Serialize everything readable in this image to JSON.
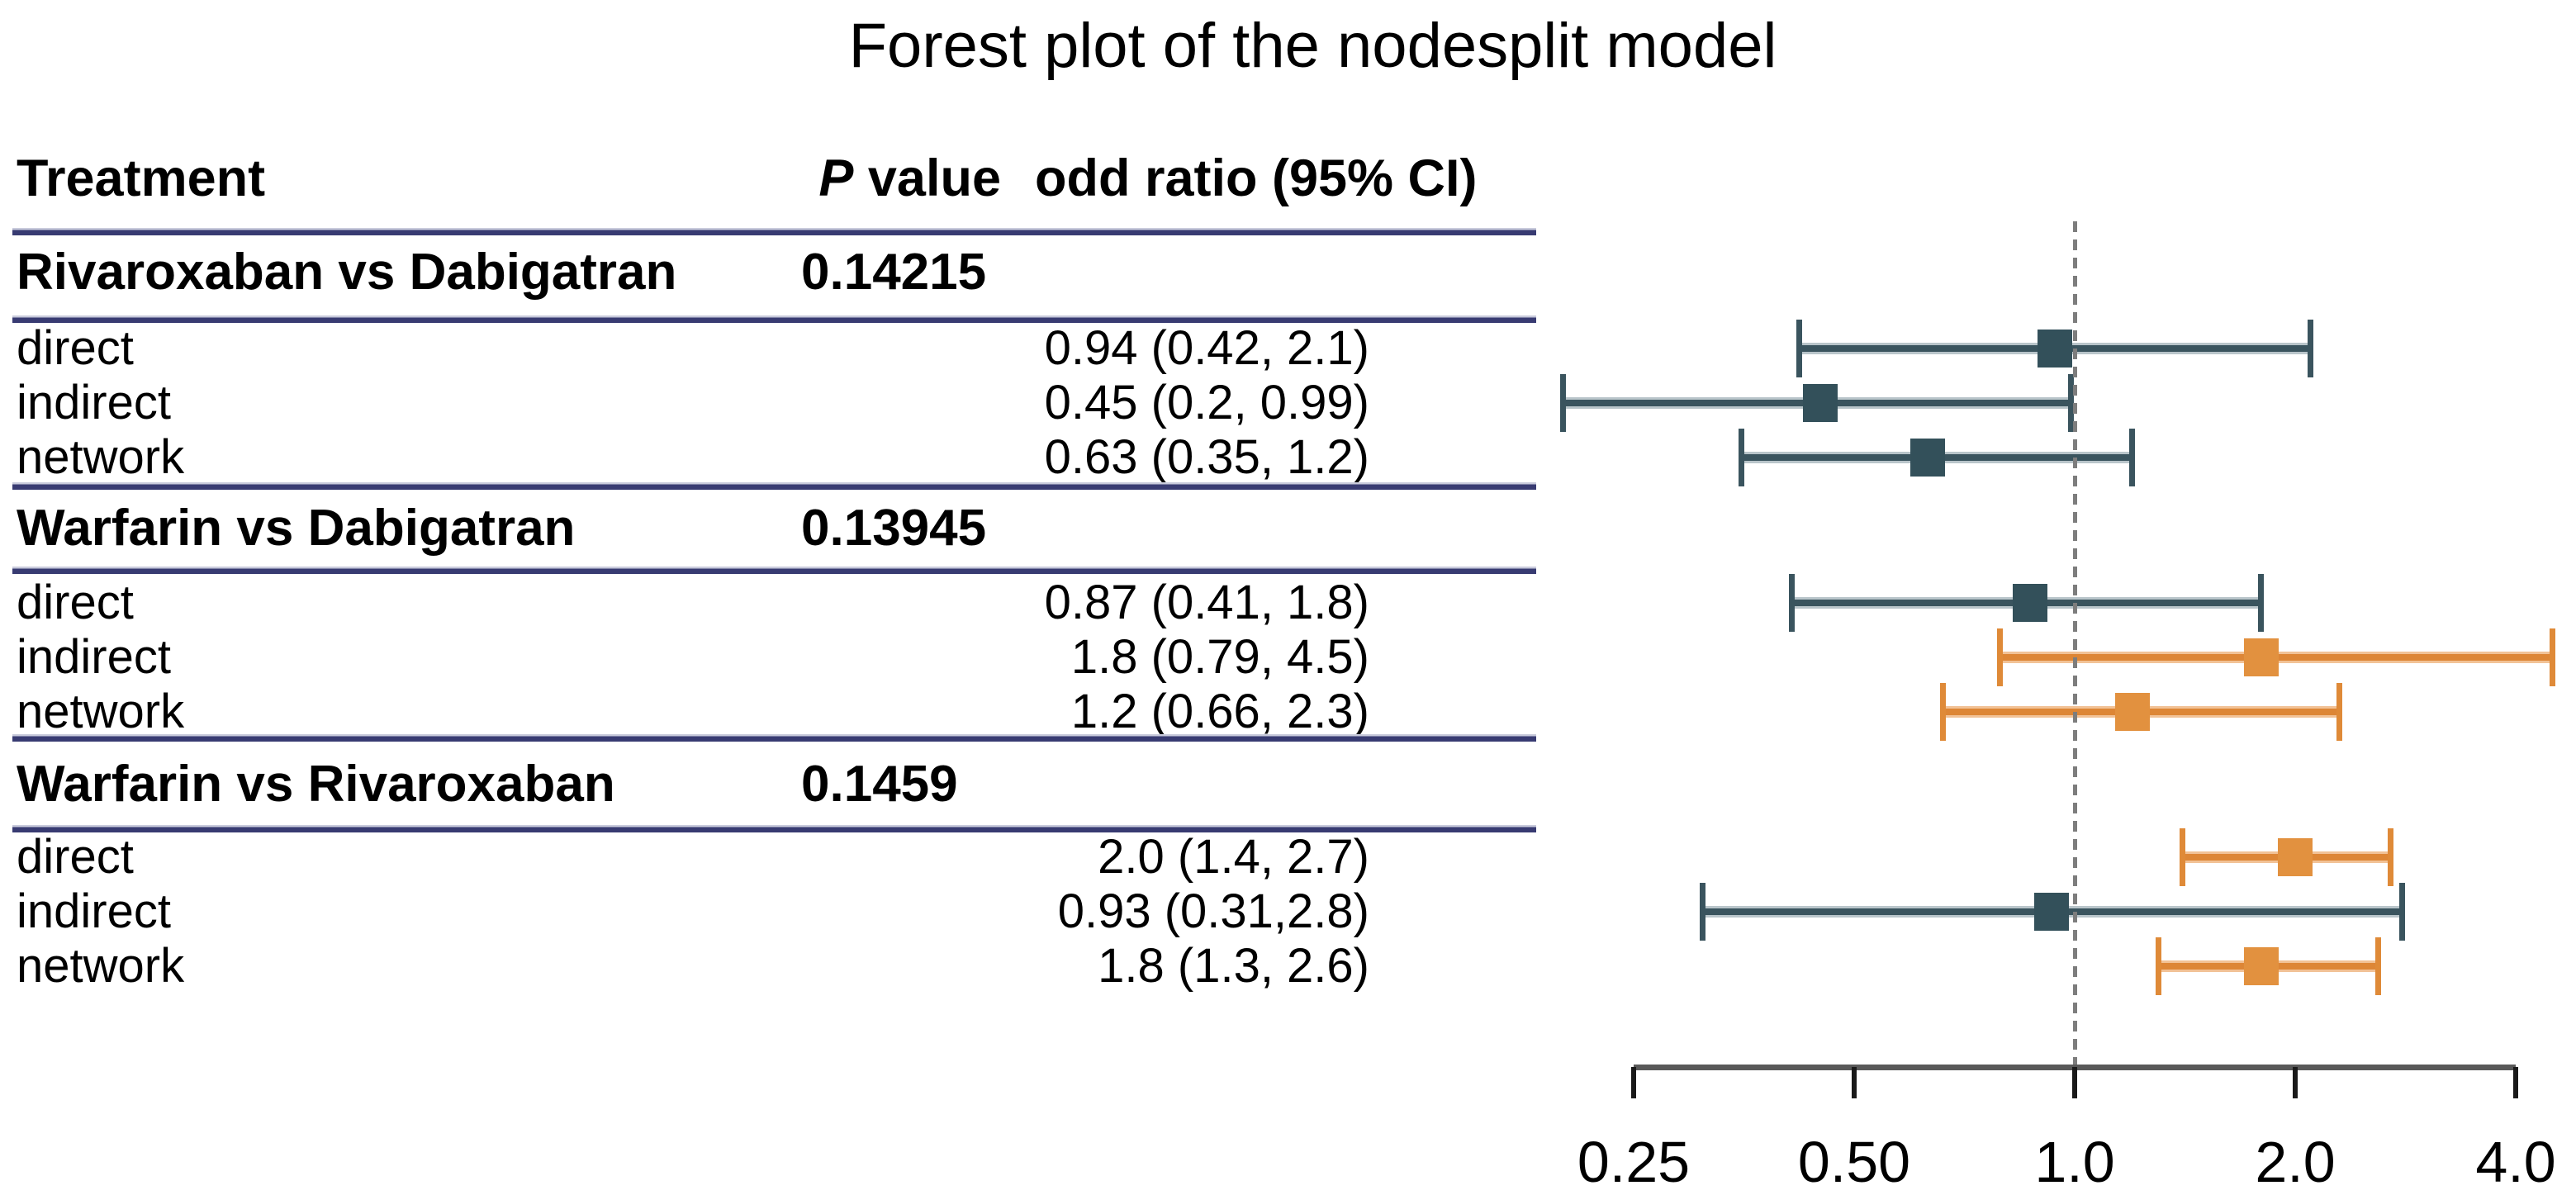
{
  "title": "Forest plot of the nodesplit model",
  "table": {
    "col_headers": {
      "treatment": "Treatment",
      "p_italic": "P",
      "p_rest": " value",
      "or": "odd ratio (95% CI)"
    }
  },
  "axis": {
    "tick_labels": [
      "0.25",
      "0.50",
      "1.0",
      "2.0",
      "4.0"
    ]
  },
  "chart_data": {
    "type": "forest",
    "title": "Forest plot of the nodesplit model",
    "x_scale": "log",
    "x_ticks": [
      0.25,
      0.5,
      1.0,
      2.0,
      4.0
    ],
    "x_tick_labels": [
      "0.25",
      "0.50",
      "1.0",
      "2.0",
      "4.0"
    ],
    "x_range": [
      0.25,
      4.0
    ],
    "reference_line": 1.0,
    "legend": "none",
    "columns": [
      "Treatment",
      "P value",
      "odd ratio (95% CI)"
    ],
    "colors": {
      "marker_below_one": "#33505a",
      "marker_above_one": "#e2913f",
      "separator": "#383b72",
      "axis": "#595959",
      "reference_dash": "#7d7d7d"
    },
    "groups": [
      {
        "comparison": "Rivaroxaban vs Dabigatran",
        "p_value": "0.14215",
        "rows": [
          {
            "label": "direct",
            "or_text": "0.94 (0.42, 2.1)",
            "estimate": 0.94,
            "lower": 0.42,
            "upper": 2.1,
            "color": "dark"
          },
          {
            "label": "indirect",
            "or_text": "0.45 (0.2, 0.99)",
            "estimate": 0.45,
            "lower": 0.2,
            "upper": 0.99,
            "color": "dark"
          },
          {
            "label": "network",
            "or_text": "0.63 (0.35, 1.2)",
            "estimate": 0.63,
            "lower": 0.35,
            "upper": 1.2,
            "color": "dark"
          }
        ]
      },
      {
        "comparison": "Warfarin vs Dabigatran",
        "p_value": "0.13945",
        "rows": [
          {
            "label": "direct",
            "or_text": "0.87 (0.41, 1.8)",
            "estimate": 0.87,
            "lower": 0.41,
            "upper": 1.8,
            "color": "dark"
          },
          {
            "label": "indirect",
            "or_text": "1.8 (0.79, 4.5)",
            "estimate": 1.8,
            "lower": 0.79,
            "upper": 4.5,
            "color": "orange"
          },
          {
            "label": "network",
            "or_text": "1.2 (0.66, 2.3)",
            "estimate": 1.2,
            "lower": 0.66,
            "upper": 2.3,
            "color": "orange"
          }
        ]
      },
      {
        "comparison": "Warfarin vs Rivaroxaban",
        "p_value": "0.1459",
        "rows": [
          {
            "label": "direct",
            "or_text": "2.0 (1.4, 2.7)",
            "estimate": 2.0,
            "lower": 1.4,
            "upper": 2.7,
            "color": "orange"
          },
          {
            "label": "indirect",
            "or_text": "0.93 (0.31,2.8)",
            "estimate": 0.93,
            "lower": 0.31,
            "upper": 2.8,
            "color": "dark"
          },
          {
            "label": "network",
            "or_text": "1.8 (1.3, 2.6)",
            "estimate": 1.8,
            "lower": 1.3,
            "upper": 2.6,
            "color": "orange"
          }
        ]
      }
    ]
  }
}
